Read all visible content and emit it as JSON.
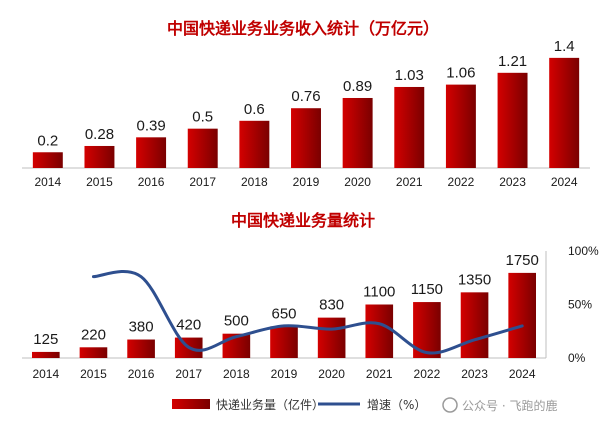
{
  "watermark": "公众号 · 飞跑的鹿",
  "colors": {
    "bar_dark": "#7a0000",
    "bar_light": "#d40000",
    "line": "#2e4f8f",
    "axis": "#bfbfbf",
    "title": "#c00000"
  },
  "chart_data": [
    {
      "type": "bar",
      "title": "中国快递业务业务收入统计（万亿元）",
      "categories": [
        "2014",
        "2015",
        "2016",
        "2017",
        "2018",
        "2019",
        "2020",
        "2021",
        "2022",
        "2023",
        "2024"
      ],
      "values": [
        0.2,
        0.28,
        0.39,
        0.5,
        0.6,
        0.76,
        0.89,
        1.03,
        1.06,
        1.21,
        1.4
      ],
      "labels": [
        "0.2",
        "0.28",
        "0.39",
        "0.5",
        "0.6",
        "0.76",
        "0.89",
        "1.03",
        "1.06",
        "1.21",
        "1.4"
      ],
      "ylim": [
        0,
        1.5
      ],
      "xlabel": "",
      "ylabel": ""
    },
    {
      "type": "bar+line",
      "title": "中国快递业务量统计",
      "categories": [
        "2014",
        "2015",
        "2016",
        "2017",
        "2018",
        "2019",
        "2020",
        "2021",
        "2022",
        "2023",
        "2024"
      ],
      "series": [
        {
          "name": "快递业务量（亿件）",
          "type": "bar",
          "axis": "left",
          "values": [
            125,
            220,
            380,
            420,
            500,
            650,
            830,
            1100,
            1150,
            1350,
            1750
          ],
          "labels": [
            "125",
            "220",
            "380",
            "420",
            "500",
            "650",
            "830",
            "1100",
            "1150",
            "1350",
            "1750"
          ]
        },
        {
          "name": "增速（%）",
          "type": "line",
          "axis": "right",
          "values": [
            null,
            76,
            76,
            10,
            20,
            30,
            27,
            32,
            5,
            17,
            30
          ]
        }
      ],
      "ylim_left": [
        0,
        2200
      ],
      "ylim_right": [
        0,
        100
      ],
      "right_ticks": [
        "0%",
        "50%",
        "100%"
      ],
      "legend": {
        "position": "bottom",
        "items": [
          "快递业务量（亿件）",
          "增速（%）"
        ]
      }
    }
  ]
}
